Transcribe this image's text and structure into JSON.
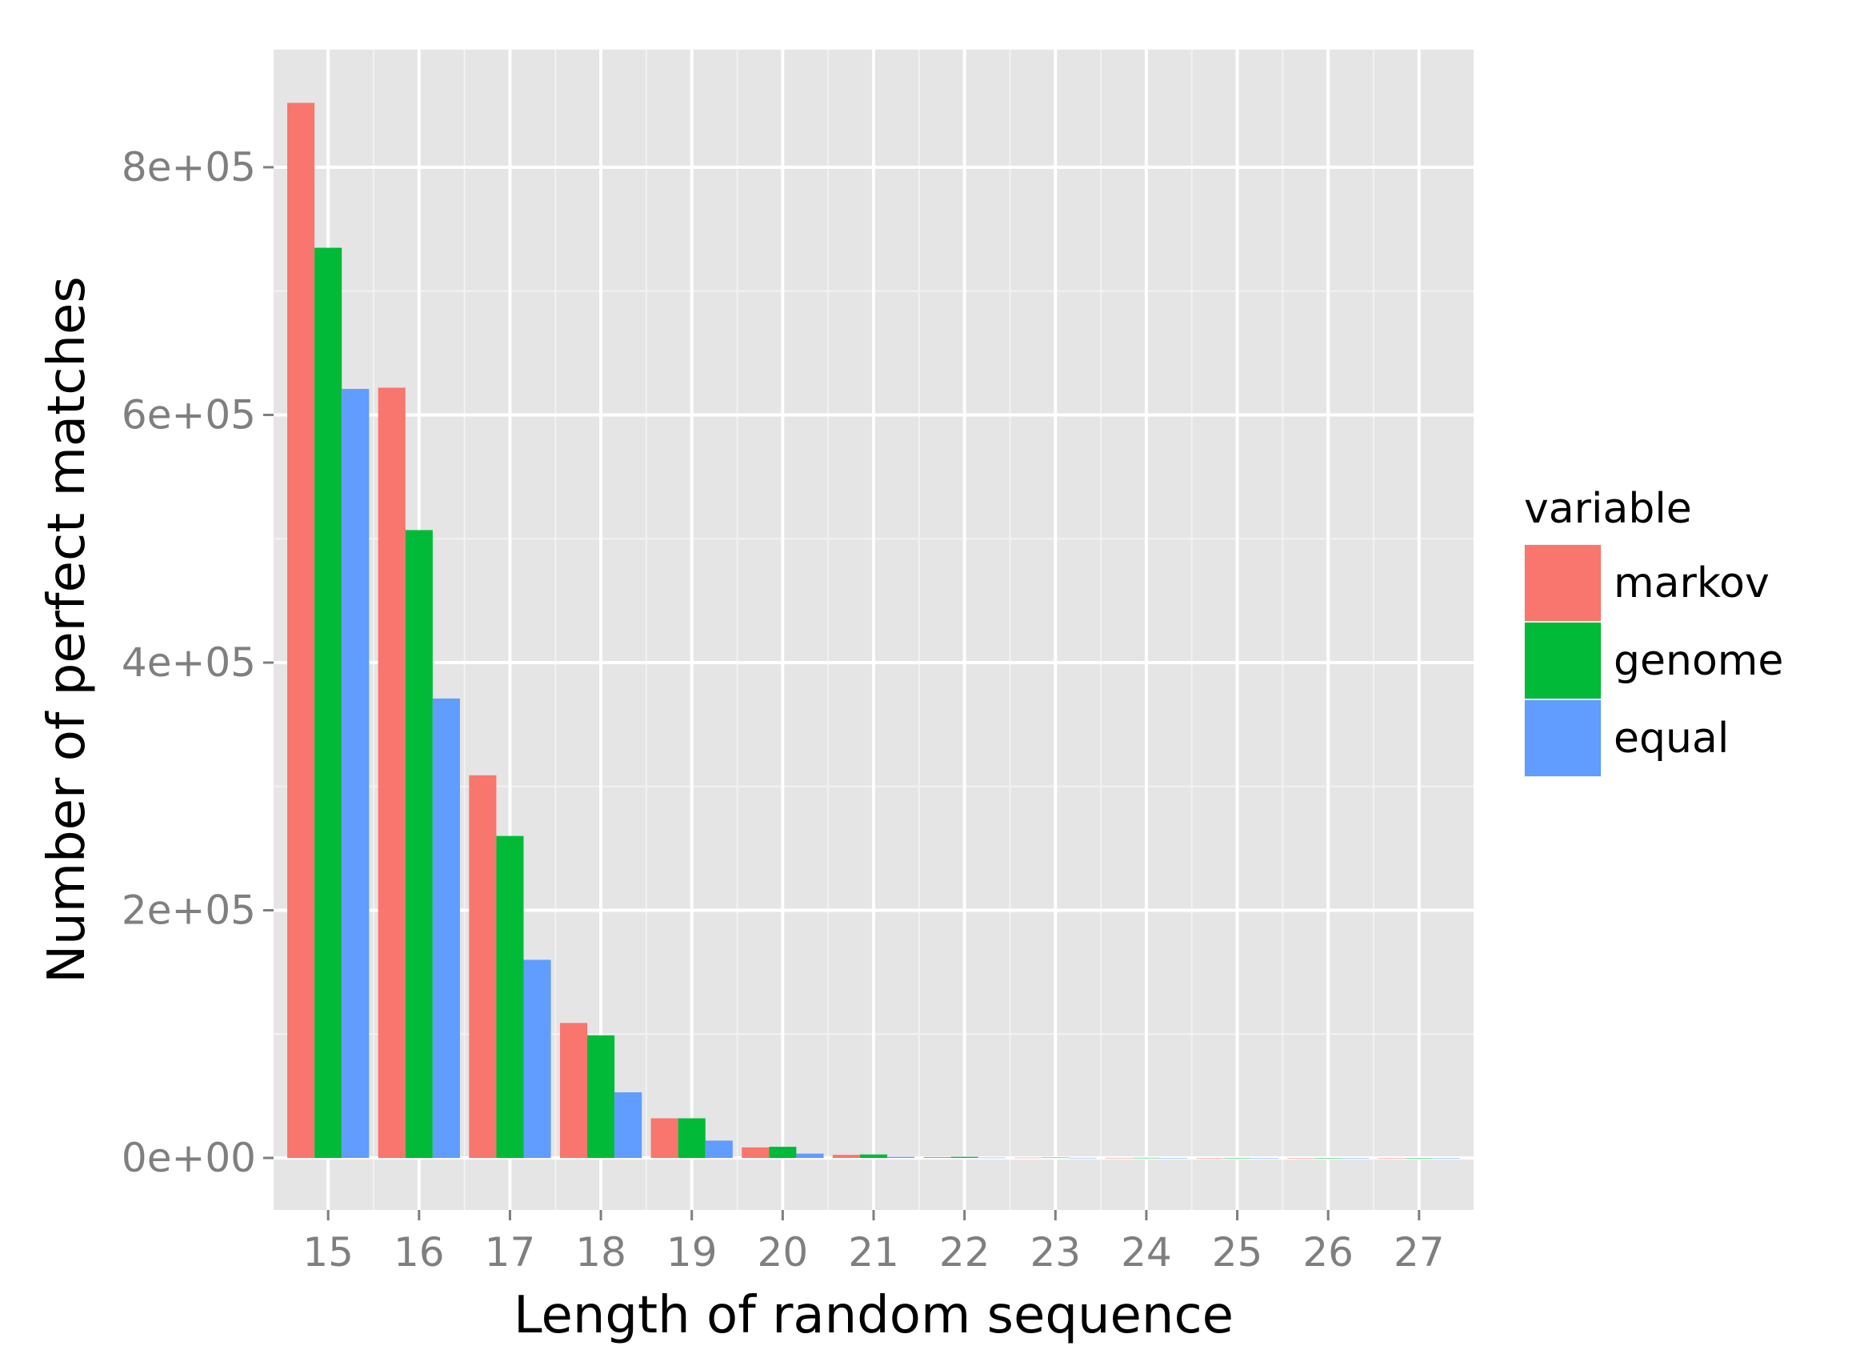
{
  "chart_data": {
    "type": "bar",
    "xlabel": "Length of random sequence",
    "ylabel": "Number of perfect matches",
    "categories": [
      "15",
      "16",
      "17",
      "18",
      "19",
      "20",
      "21",
      "22",
      "23",
      "24",
      "25",
      "26",
      "27"
    ],
    "series": [
      {
        "name": "markov",
        "color": "#F8766D",
        "values": [
          852000,
          622000,
          309000,
          109000,
          32000,
          8500,
          2500,
          700,
          200,
          60,
          20,
          5,
          2
        ]
      },
      {
        "name": "genome",
        "color": "#00BA38",
        "values": [
          735000,
          507000,
          260000,
          99000,
          32000,
          9000,
          2800,
          900,
          300,
          100,
          30,
          10,
          3
        ]
      },
      {
        "name": "equal",
        "color": "#619CFF",
        "values": [
          621000,
          371000,
          160000,
          53000,
          14000,
          3500,
          900,
          220,
          60,
          15,
          4,
          1,
          0
        ]
      }
    ],
    "ylim": [
      -42000,
      895000
    ],
    "yticks": [
      0,
      200000,
      400000,
      600000,
      800000
    ],
    "ytick_labels": [
      "0e+00",
      "2e+05",
      "4e+05",
      "6e+05",
      "8e+05"
    ],
    "legend": {
      "title": "variable",
      "position": "right"
    },
    "grid": true,
    "panel_background": "#E5E5E5"
  }
}
